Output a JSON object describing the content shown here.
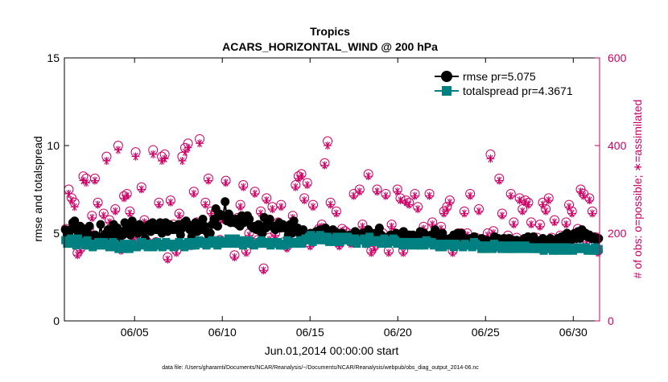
{
  "chart_data": {
    "type": "line",
    "title": "Tropics",
    "subtitle": "ACARS_HORIZONTAL_WIND @ 200 hPa",
    "xlabel": "Jun.01,2014 00:00:00 start",
    "ylabel_left": "rmse and totalspread",
    "ylabel_right": "# of obs: o=possible; ∗=assimilated",
    "footnote": "data file: /Users/gharamti/Documents/NCAR/Reanalysis/~/Documents/NCAR/Reanalysis/webpub/obs_diag_output_2014-06.nc",
    "x_range_days": [
      1,
      31.5
    ],
    "x_ticks": [
      {
        "day": 5,
        "label": "06/05"
      },
      {
        "day": 10,
        "label": "06/10"
      },
      {
        "day": 15,
        "label": "06/15"
      },
      {
        "day": 20,
        "label": "06/20"
      },
      {
        "day": 25,
        "label": "06/25"
      },
      {
        "day": 30,
        "label": "06/30"
      }
    ],
    "y_left": {
      "range": [
        0,
        15
      ],
      "ticks": [
        0,
        5,
        10,
        15
      ],
      "tick_labels": [
        "0",
        "5",
        "10",
        "15"
      ]
    },
    "y_right": {
      "range": [
        0,
        600
      ],
      "ticks": [
        0,
        200,
        400,
        600
      ],
      "tick_labels": [
        "0",
        "200",
        "400",
        "600"
      ]
    },
    "legend_position": "top-right",
    "colors": {
      "rmse": "#000000",
      "totalspread": "#008080",
      "obs": "#cc0066",
      "axis": "#000000"
    },
    "series": [
      {
        "name": "rmse",
        "legend_label": "rmse pr=5.075",
        "axis": "left",
        "marker": "circle",
        "values": [
          5.2,
          4.9,
          5.0,
          5.2,
          5.6,
          5.7,
          5.2,
          4.9,
          5.4,
          5.3,
          4.8,
          5.1,
          5.0,
          5.4,
          4.7,
          4.8,
          4.9,
          4.6,
          4.7,
          5.5,
          4.8,
          4.6,
          5.0,
          5.2,
          4.9,
          5.2,
          5.5,
          4.8,
          5.3,
          4.6,
          5.1,
          4.9,
          5.6,
          5.4,
          5.2,
          4.9,
          5.7,
          5.1,
          5.4,
          5.0,
          5.5,
          5.1,
          5.3,
          4.7,
          5.2,
          5.5,
          5.1,
          5.6,
          5.5,
          5.2,
          5.3,
          5.6,
          5.0,
          5.3,
          5.6,
          5.1,
          5.5,
          5.4,
          5.2,
          5.4,
          5.2,
          5.5,
          4.9,
          5.3,
          5.6,
          5.7,
          5.5,
          5.2,
          4.8,
          5.3,
          5.6,
          5.1,
          5.4,
          5.2,
          5.8,
          5.4,
          5.1,
          4.9,
          5.0,
          5.5,
          5.8,
          6.4,
          5.4,
          6.1,
          6.0,
          6.0,
          6.8,
          5.7,
          6.1,
          5.6,
          5.8,
          5.6,
          5.8,
          5.5,
          5.4,
          6.0,
          5.6,
          5.9,
          6.0,
          5.8,
          5.4,
          5.3,
          5.4,
          5.2,
          5.5,
          5.1,
          5.0,
          5.9,
          5.3,
          5.6,
          5.8,
          5.4,
          5.4,
          5.2,
          5.4,
          5.6,
          5.3,
          5.5,
          5.3,
          5.4,
          4.9,
          5.5,
          5.0,
          5.7,
          5.1,
          5.3,
          5.0,
          4.8,
          5.2,
          4.6,
          4.9,
          4.8,
          5.0,
          4.7,
          4.8,
          5.1,
          4.9,
          5.2,
          5.1,
          4.9,
          5.3,
          4.7,
          4.9,
          5.0,
          5.2,
          5.1,
          4.8,
          5.0,
          4.7,
          5.0,
          4.9,
          4.7,
          4.6,
          4.9,
          4.8,
          4.7,
          5.1,
          4.7,
          4.8,
          4.7,
          5.0,
          4.9,
          4.8,
          5.2,
          4.9,
          5.0,
          4.9,
          5.0,
          4.7,
          5.3,
          4.9,
          4.8,
          4.6,
          4.6,
          4.8,
          4.9,
          4.7,
          4.8,
          5.0,
          4.9,
          4.8,
          5.0,
          5.1,
          4.8,
          4.6,
          4.9,
          4.8,
          4.9,
          4.7,
          4.8,
          4.8,
          5.1,
          4.9,
          5.0,
          4.9,
          4.8,
          4.7,
          4.9,
          4.6,
          5.2,
          4.8,
          4.9,
          4.7,
          5.0,
          4.7,
          4.6,
          4.5,
          4.7,
          4.6,
          4.9,
          4.8,
          5.0,
          4.8,
          5.0,
          4.7,
          4.7,
          4.6,
          4.6,
          4.7,
          4.6,
          4.8,
          4.6,
          4.4,
          4.5,
          4.7,
          4.4,
          4.6,
          4.6,
          4.5,
          4.5,
          4.6,
          4.8,
          4.7,
          4.7,
          4.6,
          4.6,
          4.7,
          4.5,
          4.6,
          4.7,
          4.5,
          4.6,
          4.4,
          4.6,
          4.5,
          4.4,
          4.6,
          4.7,
          4.5,
          4.8,
          4.5,
          4.7,
          4.8,
          4.6,
          4.5,
          4.3,
          4.6,
          4.7,
          4.5,
          4.6,
          4.4,
          4.7,
          4.3,
          4.6,
          4.5,
          4.7,
          4.6,
          4.8,
          4.5,
          4.9,
          5.0,
          4.7,
          4.6,
          4.9,
          5.0,
          4.7,
          5.1,
          4.7,
          5.2,
          4.9,
          5.0,
          4.8,
          4.9,
          4.7,
          4.7,
          4.8,
          4.6,
          4.7
        ]
      },
      {
        "name": "totalspread",
        "legend_label": "totalspread pr=4.3671",
        "axis": "left",
        "marker": "square",
        "values": [
          4.6,
          4.4,
          4.4,
          4.7,
          4.5,
          4.6,
          4.3,
          4.7,
          4.5,
          4.4,
          4.5,
          4.3,
          4.6,
          4.3,
          4.4,
          4.2,
          4.4,
          4.3,
          4.5,
          4.3,
          4.4,
          4.5,
          4.3,
          4.4,
          4.2,
          4.3,
          4.5,
          4.4,
          4.2,
          4.1,
          4.3,
          4.3,
          4.4,
          4.1,
          4.2,
          4.1,
          4.4,
          4.3,
          4.3,
          4.2,
          4.3,
          4.5,
          4.5,
          4.3,
          4.4,
          4.2,
          4.4,
          4.3,
          4.2,
          4.3,
          4.5,
          4.4,
          4.3,
          4.2,
          4.4,
          4.5,
          4.3,
          4.3,
          4.4,
          4.2,
          4.3,
          4.3,
          4.5,
          4.3,
          4.4,
          4.2,
          4.3,
          4.5,
          4.3,
          4.3,
          4.5,
          4.3,
          4.4,
          4.6,
          4.4,
          4.4,
          4.5,
          4.3,
          4.4,
          4.5,
          4.6,
          4.5,
          4.4,
          4.3,
          4.6,
          4.5,
          4.5,
          4.4,
          4.5,
          4.7,
          4.6,
          4.4,
          4.6,
          4.7,
          4.4,
          4.4,
          4.6,
          4.3,
          4.5,
          4.4,
          4.6,
          4.5,
          4.4,
          4.3,
          4.4,
          4.4,
          4.5,
          4.6,
          4.4,
          4.4,
          4.5,
          4.4,
          4.3,
          4.4,
          4.5,
          4.4,
          4.5,
          4.3,
          4.3,
          4.4,
          4.3,
          4.6,
          4.4,
          4.5,
          4.5,
          4.4,
          4.5,
          4.4,
          4.6,
          4.4,
          4.6,
          4.7,
          4.6,
          4.8,
          4.9,
          4.5,
          4.7,
          4.8,
          4.6,
          4.9,
          4.8,
          4.6,
          4.6,
          4.8,
          4.5,
          4.7,
          4.6,
          4.5,
          4.8,
          4.6,
          4.5,
          4.6,
          4.8,
          4.6,
          4.8,
          4.6,
          4.5,
          4.7,
          4.7,
          4.4,
          4.6,
          4.6,
          4.6,
          4.7,
          4.4,
          4.5,
          4.8,
          4.6,
          4.5,
          4.6,
          4.5,
          4.6,
          4.4,
          4.5,
          4.7,
          4.6,
          4.4,
          4.5,
          4.5,
          4.7,
          4.6,
          4.4,
          4.5,
          4.5,
          4.3,
          4.5,
          4.4,
          4.3,
          4.5,
          4.4,
          4.4,
          4.3,
          4.5,
          4.3,
          4.5,
          4.4,
          4.3,
          4.6,
          4.4,
          4.4,
          4.5,
          4.3,
          4.4,
          4.4,
          4.2,
          4.3,
          4.2,
          4.4,
          4.4,
          4.3,
          4.3,
          4.4,
          4.2,
          4.4,
          4.3,
          4.3,
          4.3,
          4.2,
          4.4,
          4.3,
          4.3,
          4.3,
          4.2,
          4.5,
          4.4,
          4.3,
          4.3,
          4.1,
          4.3,
          4.1,
          4.2,
          4.3,
          4.3,
          4.1,
          4.4,
          4.2,
          4.2,
          4.3,
          4.1,
          4.3,
          4.2,
          4.1,
          4.3,
          4.1,
          4.2,
          4.1,
          4.3,
          4.3,
          4.1,
          4.2,
          4.2,
          4.3,
          4.1,
          4.2,
          4.2,
          4.1,
          4.1,
          4.2,
          4.1,
          4.1,
          4.2,
          4.0,
          4.2,
          4.1,
          4.1,
          4.2,
          4.0,
          4.1,
          4.2,
          4.0,
          4.2,
          4.1,
          4.1,
          4.0,
          4.2,
          4.1,
          4.1,
          4.0,
          4.1,
          4.2,
          4.1,
          4.1,
          4.2,
          4.1,
          4.2,
          4.0,
          4.1,
          4.1,
          4.0,
          4.2,
          4.0,
          4.1
        ]
      },
      {
        "name": "obs_possible",
        "legend_label": "",
        "axis": "right",
        "marker": "open-circle",
        "values": [
          210,
          300,
          280,
          270,
          155,
          165,
          330,
          325,
          210,
          240,
          325,
          270,
          190,
          245,
          375,
          230,
          180,
          255,
          400,
          165,
          285,
          290,
          250,
          195,
          385,
          190,
          305,
          230,
          180,
          175,
          390,
          180,
          270,
          375,
          380,
          145,
          275,
          220,
          160,
          245,
          375,
          395,
          405,
          175,
          295,
          225,
          415,
          180,
          270,
          325,
          250,
          180,
          230,
          185,
          235,
          320,
          240,
          185,
          150,
          235,
          265,
          310,
          160,
          200,
          180,
          295,
          185,
          250,
          120,
          280,
          190,
          260,
          200,
          225,
          265,
          180,
          170,
          200,
          240,
          310,
          330,
          335,
          280,
          315,
          175,
          265,
          190,
          210,
          220,
          360,
          410,
          270,
          200,
          250,
          175,
          210,
          205,
          200,
          180,
          290,
          200,
          300,
          220,
          180,
          335,
          160,
          170,
          300,
          190,
          200,
          290,
          160,
          220,
          200,
          300,
          280,
          160,
          275,
          270,
          190,
          290,
          260,
          200,
          215,
          185,
          290,
          225,
          200,
          200,
          215,
          250,
          260,
          275,
          160,
          190,
          200,
          200,
          250,
          200,
          290,
          180,
          190,
          255,
          170,
          175,
          200,
          380,
          205,
          170,
          325,
          245,
          185,
          195,
          290,
          225,
          190,
          280,
          255,
          275,
          270,
          225,
          175,
          190,
          220,
          270,
          255,
          280,
          190,
          230,
          180,
          195,
          175,
          225,
          265,
          250,
          190,
          210,
          300,
          290,
          185,
          280,
          250,
          180,
          160
        ]
      },
      {
        "name": "obs_assimilated",
        "legend_label": "",
        "axis": "right",
        "marker": "asterisk",
        "values": [
          205,
          290,
          275,
          260,
          150,
          160,
          320,
          315,
          205,
          235,
          320,
          265,
          185,
          240,
          365,
          225,
          175,
          250,
          390,
          160,
          280,
          285,
          245,
          190,
          375,
          185,
          300,
          225,
          175,
          170,
          380,
          175,
          265,
          365,
          370,
          140,
          270,
          215,
          155,
          240,
          365,
          385,
          395,
          170,
          290,
          220,
          405,
          175,
          265,
          320,
          245,
          175,
          225,
          180,
          230,
          315,
          235,
          180,
          145,
          230,
          260,
          305,
          155,
          195,
          175,
          290,
          180,
          245,
          115,
          275,
          185,
          255,
          195,
          220,
          260,
          175,
          165,
          195,
          235,
          305,
          325,
          330,
          275,
          310,
          170,
          260,
          185,
          205,
          215,
          355,
          400,
          265,
          195,
          245,
          170,
          205,
          200,
          195,
          175,
          285,
          195,
          295,
          215,
          175,
          330,
          155,
          165,
          295,
          185,
          195,
          285,
          155,
          215,
          195,
          295,
          275,
          155,
          270,
          265,
          185,
          285,
          255,
          195,
          210,
          180,
          285,
          220,
          195,
          195,
          210,
          245,
          255,
          270,
          155,
          185,
          195,
          195,
          245,
          195,
          285,
          175,
          185,
          250,
          165,
          170,
          195,
          370,
          200,
          165,
          320,
          240,
          180,
          190,
          285,
          220,
          185,
          275,
          250,
          270,
          265,
          220,
          170,
          185,
          215,
          265,
          250,
          275,
          185,
          225,
          175,
          190,
          170,
          220,
          260,
          245,
          185,
          205,
          295,
          285,
          180,
          275,
          245,
          175,
          155
        ]
      }
    ]
  }
}
